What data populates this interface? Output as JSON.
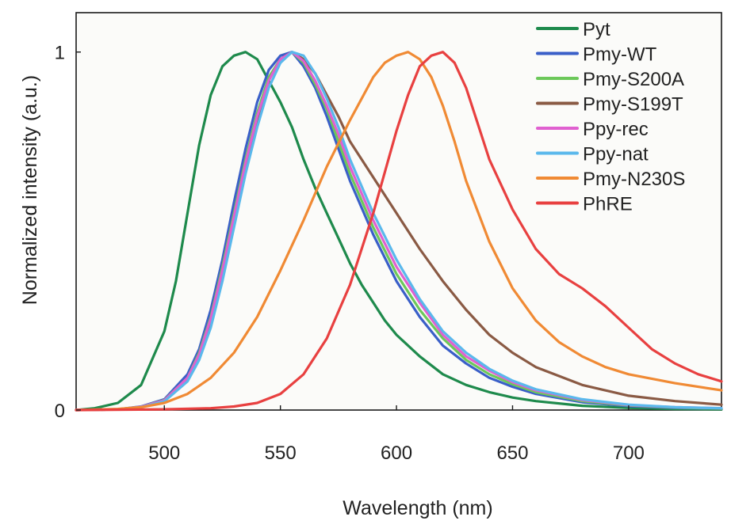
{
  "chart_data": {
    "type": "line",
    "title": "",
    "xlabel": "Wavelength (nm)",
    "ylabel": "Normalized intensity (a.u.)",
    "xlim": [
      462,
      740
    ],
    "ylim": [
      0,
      1.11
    ],
    "xticks": [
      500,
      550,
      600,
      650,
      700
    ],
    "yticks": [
      0,
      1
    ],
    "grid": false,
    "legend_position": "top-right",
    "series": [
      {
        "name": "Pyt",
        "color": "#1e8a4c",
        "x": [
          462,
          470,
          480,
          490,
          500,
          505,
          510,
          515,
          520,
          525,
          530,
          535,
          540,
          545,
          550,
          555,
          560,
          565,
          570,
          575,
          580,
          585,
          590,
          595,
          600,
          610,
          620,
          630,
          640,
          650,
          660,
          680,
          700,
          720,
          740
        ],
        "y": [
          0.0,
          0.005,
          0.02,
          0.07,
          0.22,
          0.36,
          0.55,
          0.74,
          0.88,
          0.96,
          0.99,
          1.0,
          0.98,
          0.92,
          0.86,
          0.79,
          0.7,
          0.62,
          0.55,
          0.48,
          0.41,
          0.35,
          0.3,
          0.25,
          0.21,
          0.15,
          0.1,
          0.07,
          0.05,
          0.035,
          0.025,
          0.012,
          0.006,
          0.003,
          0.002
        ]
      },
      {
        "name": "Pmy-WT",
        "color": "#3a5fc8",
        "x": [
          462,
          480,
          490,
          500,
          510,
          515,
          520,
          525,
          530,
          535,
          540,
          545,
          550,
          555,
          560,
          565,
          570,
          575,
          580,
          590,
          600,
          610,
          620,
          630,
          640,
          650,
          660,
          680,
          700,
          720,
          740
        ],
        "y": [
          0.0,
          0.002,
          0.01,
          0.03,
          0.1,
          0.17,
          0.28,
          0.42,
          0.58,
          0.73,
          0.86,
          0.95,
          0.99,
          1.0,
          0.96,
          0.9,
          0.82,
          0.73,
          0.64,
          0.49,
          0.36,
          0.26,
          0.18,
          0.13,
          0.09,
          0.065,
          0.045,
          0.022,
          0.011,
          0.006,
          0.004
        ]
      },
      {
        "name": "Pmy-S200A",
        "color": "#6cc85a",
        "x": [
          462,
          480,
          490,
          500,
          510,
          515,
          520,
          525,
          530,
          535,
          540,
          545,
          550,
          555,
          560,
          565,
          570,
          575,
          580,
          590,
          600,
          610,
          620,
          630,
          640,
          650,
          660,
          680,
          700,
          720,
          740
        ],
        "y": [
          0.0,
          0.002,
          0.009,
          0.028,
          0.09,
          0.16,
          0.26,
          0.4,
          0.55,
          0.7,
          0.83,
          0.93,
          0.98,
          1.0,
          0.97,
          0.91,
          0.84,
          0.75,
          0.66,
          0.51,
          0.38,
          0.28,
          0.2,
          0.14,
          0.1,
          0.072,
          0.05,
          0.025,
          0.013,
          0.007,
          0.004
        ]
      },
      {
        "name": "Pmy-S199T",
        "color": "#8a5a44",
        "x": [
          462,
          480,
          490,
          500,
          510,
          515,
          520,
          525,
          530,
          535,
          540,
          545,
          550,
          555,
          560,
          565,
          570,
          575,
          580,
          590,
          600,
          610,
          620,
          630,
          640,
          650,
          660,
          680,
          700,
          720,
          740
        ],
        "y": [
          0.0,
          0.002,
          0.008,
          0.025,
          0.085,
          0.15,
          0.25,
          0.38,
          0.53,
          0.68,
          0.81,
          0.92,
          0.98,
          1.0,
          0.98,
          0.94,
          0.88,
          0.82,
          0.75,
          0.65,
          0.55,
          0.45,
          0.36,
          0.28,
          0.21,
          0.16,
          0.12,
          0.07,
          0.04,
          0.025,
          0.015
        ]
      },
      {
        "name": "Ppy-rec",
        "color": "#e060d0",
        "x": [
          462,
          480,
          490,
          500,
          510,
          515,
          520,
          525,
          530,
          535,
          540,
          545,
          550,
          555,
          560,
          565,
          570,
          575,
          580,
          590,
          600,
          610,
          620,
          630,
          640,
          650,
          660,
          680,
          700,
          720,
          740
        ],
        "y": [
          0.0,
          0.002,
          0.009,
          0.027,
          0.09,
          0.155,
          0.255,
          0.39,
          0.54,
          0.69,
          0.82,
          0.92,
          0.98,
          1.0,
          0.975,
          0.92,
          0.85,
          0.77,
          0.68,
          0.53,
          0.4,
          0.3,
          0.21,
          0.15,
          0.11,
          0.078,
          0.055,
          0.028,
          0.014,
          0.008,
          0.005
        ]
      },
      {
        "name": "Ppy-nat",
        "color": "#5ab8ec",
        "x": [
          462,
          480,
          490,
          500,
          510,
          515,
          520,
          525,
          530,
          535,
          540,
          545,
          550,
          555,
          560,
          565,
          570,
          575,
          580,
          590,
          600,
          610,
          620,
          630,
          640,
          650,
          660,
          680,
          700,
          720,
          740
        ],
        "y": [
          0.0,
          0.002,
          0.008,
          0.024,
          0.08,
          0.14,
          0.23,
          0.36,
          0.51,
          0.66,
          0.79,
          0.9,
          0.97,
          1.0,
          0.99,
          0.94,
          0.87,
          0.79,
          0.7,
          0.55,
          0.42,
          0.31,
          0.22,
          0.16,
          0.115,
          0.082,
          0.058,
          0.03,
          0.015,
          0.008,
          0.005
        ]
      },
      {
        "name": "Pmy-N230S",
        "color": "#f08a34",
        "x": [
          462,
          480,
          490,
          500,
          510,
          520,
          530,
          540,
          550,
          560,
          570,
          580,
          590,
          595,
          600,
          605,
          610,
          615,
          620,
          625,
          630,
          640,
          650,
          660,
          670,
          680,
          690,
          700,
          720,
          740
        ],
        "y": [
          0.0,
          0.003,
          0.008,
          0.02,
          0.045,
          0.09,
          0.16,
          0.26,
          0.39,
          0.53,
          0.68,
          0.81,
          0.93,
          0.97,
          0.99,
          1.0,
          0.98,
          0.93,
          0.85,
          0.75,
          0.64,
          0.47,
          0.34,
          0.25,
          0.19,
          0.15,
          0.12,
          0.1,
          0.075,
          0.055
        ]
      },
      {
        "name": "PhRE",
        "color": "#e84040",
        "x": [
          462,
          500,
          520,
          530,
          540,
          550,
          560,
          570,
          580,
          590,
          600,
          605,
          610,
          615,
          620,
          625,
          630,
          635,
          640,
          650,
          660,
          670,
          680,
          690,
          700,
          710,
          720,
          730,
          740
        ],
        "y": [
          0.0,
          0.002,
          0.005,
          0.01,
          0.02,
          0.045,
          0.1,
          0.2,
          0.35,
          0.55,
          0.78,
          0.88,
          0.96,
          0.99,
          1.0,
          0.97,
          0.9,
          0.8,
          0.7,
          0.56,
          0.45,
          0.38,
          0.34,
          0.29,
          0.23,
          0.17,
          0.13,
          0.1,
          0.08
        ]
      }
    ]
  }
}
